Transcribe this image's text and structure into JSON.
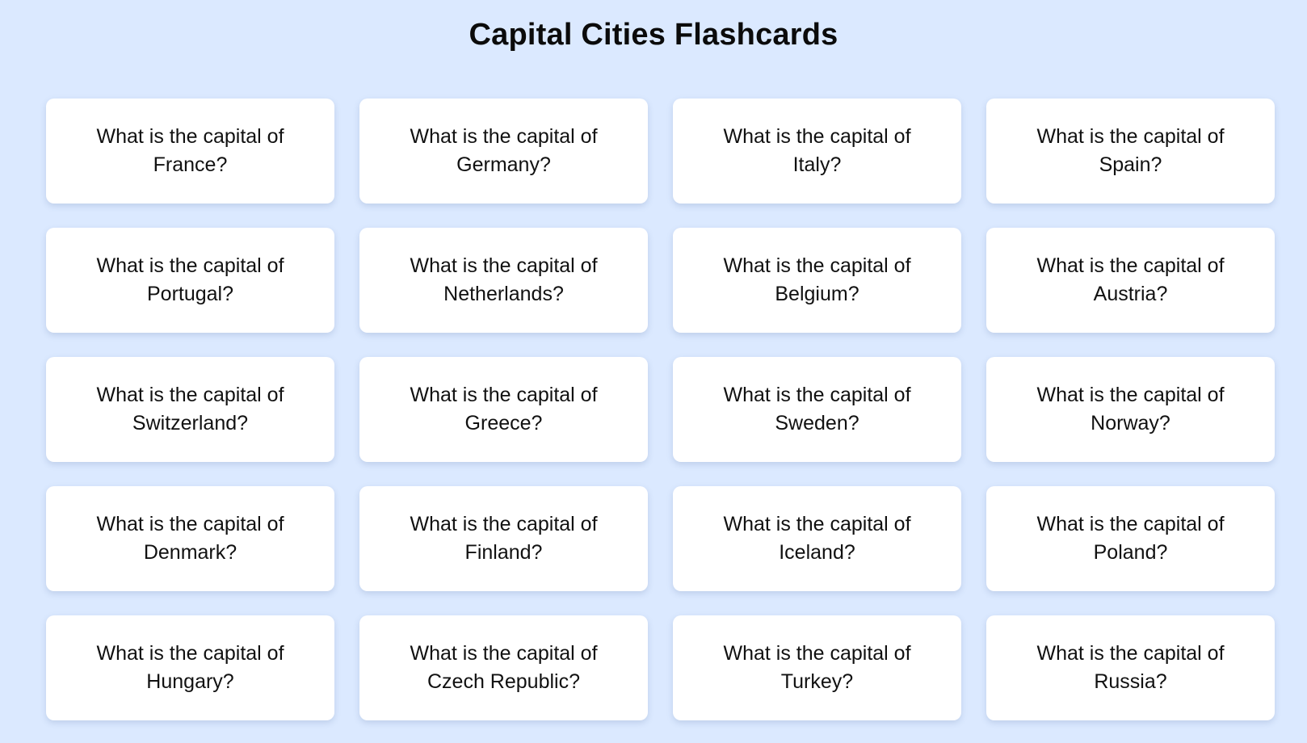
{
  "page": {
    "title": "Capital Cities Flashcards"
  },
  "colors": {
    "background": "#dbe9ff",
    "card": "#ffffff",
    "text": "#111111"
  },
  "cards": [
    {
      "line1": "What is the capital of",
      "line2": "France?"
    },
    {
      "line1": "What is the capital of",
      "line2": "Germany?"
    },
    {
      "line1": "What is the capital of",
      "line2": "Italy?"
    },
    {
      "line1": "What is the capital of",
      "line2": "Spain?"
    },
    {
      "line1": "What is the capital of",
      "line2": "Portugal?"
    },
    {
      "line1": "What is the capital of",
      "line2": "Netherlands?"
    },
    {
      "line1": "What is the capital of",
      "line2": "Belgium?"
    },
    {
      "line1": "What is the capital of",
      "line2": "Austria?"
    },
    {
      "line1": "What is the capital of",
      "line2": "Switzerland?"
    },
    {
      "line1": "What is the capital of",
      "line2": "Greece?"
    },
    {
      "line1": "What is the capital of",
      "line2": "Sweden?"
    },
    {
      "line1": "What is the capital of",
      "line2": "Norway?"
    },
    {
      "line1": "What is the capital of",
      "line2": "Denmark?"
    },
    {
      "line1": "What is the capital of",
      "line2": "Finland?"
    },
    {
      "line1": "What is the capital of",
      "line2": "Iceland?"
    },
    {
      "line1": "What is the capital of",
      "line2": "Poland?"
    },
    {
      "line1": "What is the capital of",
      "line2": "Hungary?"
    },
    {
      "line1": "What is the capital of",
      "line2": "Czech Republic?"
    },
    {
      "line1": "What is the capital of",
      "line2": "Turkey?"
    },
    {
      "line1": "What is the capital of",
      "line2": "Russia?"
    }
  ]
}
